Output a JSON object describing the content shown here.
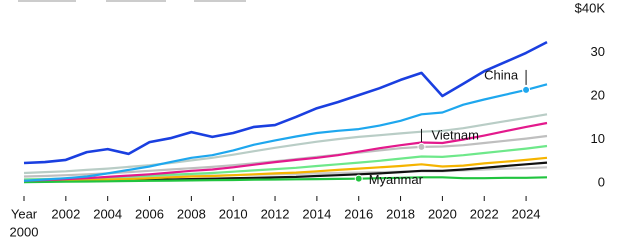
{
  "chart_data": {
    "type": "line",
    "x": [
      2000,
      2001,
      2002,
      2003,
      2004,
      2005,
      2006,
      2007,
      2008,
      2009,
      2010,
      2011,
      2012,
      2013,
      2014,
      2015,
      2016,
      2017,
      2018,
      2019,
      2020,
      2021,
      2022,
      2023,
      2024,
      2025
    ],
    "x_label": "Year",
    "xlim": [
      2000,
      2025
    ],
    "xticks": [
      2000,
      2002,
      2004,
      2006,
      2008,
      2010,
      2012,
      2014,
      2016,
      2018,
      2020,
      2022,
      2024
    ],
    "ylim": [
      0,
      40
    ],
    "yticks": [
      0,
      10,
      20,
      30,
      {
        "value": 40,
        "label": "$40K"
      }
    ],
    "series": [
      {
        "color": "#c8c8c8",
        "values": [
          0.8,
          0.9,
          1,
          1.1,
          1.2,
          1.3,
          1.4,
          1.5,
          1.6,
          1.7,
          1.8,
          1.9,
          2,
          2.1,
          2.2,
          2.3,
          2.4,
          2.5,
          2.6,
          2.7,
          2.7,
          2.9,
          3.1,
          3.3,
          3.4,
          3.6
        ]
      },
      {
        "color": "#111111",
        "values": [
          0.3,
          0.35,
          0.4,
          0.45,
          0.5,
          0.6,
          0.7,
          0.8,
          0.9,
          1,
          1.1,
          1.2,
          1.3,
          1.4,
          1.6,
          1.8,
          2,
          2.2,
          2.5,
          2.8,
          2.8,
          3.1,
          3.5,
          3.9,
          4.3,
          4.7
        ]
      },
      {
        "color": "#f5b400",
        "values": [
          0.4,
          0.5,
          0.6,
          0.7,
          0.8,
          0.9,
          1.1,
          1.3,
          1.5,
          1.6,
          1.8,
          2,
          2.2,
          2.4,
          2.7,
          3,
          3.3,
          3.6,
          3.9,
          4.3,
          3.8,
          4,
          4.5,
          4.9,
          5.3,
          5.8
        ]
      },
      {
        "name": "Myanmar",
        "color": "#21c43f",
        "marker": 2016,
        "values": [
          0.2,
          0.25,
          0.3,
          0.35,
          0.4,
          0.45,
          0.5,
          0.55,
          0.6,
          0.65,
          0.7,
          0.75,
          0.8,
          0.85,
          0.9,
          0.95,
          1.0,
          1.1,
          1.2,
          1.3,
          1.3,
          1.1,
          1.1,
          1.2,
          1.2,
          1.3
        ]
      },
      {
        "color": "#6ee88a",
        "values": [
          0.8,
          0.9,
          1.0,
          1.1,
          1.3,
          1.5,
          1.7,
          1.9,
          2.1,
          2.3,
          2.6,
          2.9,
          3.2,
          3.5,
          3.9,
          4.3,
          4.7,
          5.1,
          5.6,
          6.1,
          6,
          6.4,
          6.9,
          7.4,
          7.9,
          8.5
        ]
      },
      {
        "name": "Vietnam",
        "color": "#bfbfbf",
        "marker": 2019,
        "values": [
          1.5,
          1.6,
          1.8,
          2,
          2.2,
          2.5,
          2.8,
          3.1,
          3.4,
          3.7,
          4.1,
          4.5,
          5,
          5.5,
          6,
          6.5,
          7,
          7.5,
          8,
          8.3,
          8.4,
          8.7,
          9.2,
          9.7,
          10.2,
          10.8
        ]
      },
      {
        "color": "#e3198c",
        "values": [
          0.5,
          0.7,
          0.9,
          1.1,
          1.4,
          1.7,
          2,
          2.4,
          2.8,
          3.1,
          3.6,
          4.2,
          4.8,
          5.3,
          5.8,
          6.4,
          7.2,
          8,
          8.7,
          9.3,
          9.2,
          10,
          10.9,
          11.9,
          12.9,
          13.8
        ]
      },
      {
        "color": "#b9cdc6",
        "values": [
          2.3,
          2.5,
          2.7,
          3,
          3.3,
          3.7,
          4.1,
          4.6,
          5.2,
          5.8,
          6.5,
          7.3,
          8.1,
          8.8,
          9.5,
          10.1,
          10.6,
          11,
          11.4,
          11.8,
          12,
          12.6,
          13.4,
          14.2,
          15,
          15.8
        ]
      },
      {
        "name": "China",
        "color": "#1ea7ee",
        "marker": 2024,
        "values": [
          0.5,
          0.8,
          1.1,
          1.5,
          2.2,
          3.0,
          3.8,
          4.8,
          5.8,
          6.4,
          7.5,
          8.8,
          9.8,
          10.7,
          11.5,
          12,
          12.4,
          13.2,
          14.3,
          15.8,
          16.2,
          18,
          19.2,
          20.3,
          21.4,
          22.7
        ]
      },
      {
        "color": "#1a3fe0",
        "values": [
          4.6,
          4.8,
          5.3,
          7.1,
          7.8,
          6.7,
          9.4,
          10.3,
          11.7,
          10.6,
          11.5,
          12.9,
          13.3,
          15.2,
          17.2,
          18.6,
          20.2,
          21.8,
          23.7,
          25.3,
          20,
          22.8,
          25.7,
          27.8,
          29.9,
          32.4
        ]
      }
    ]
  }
}
